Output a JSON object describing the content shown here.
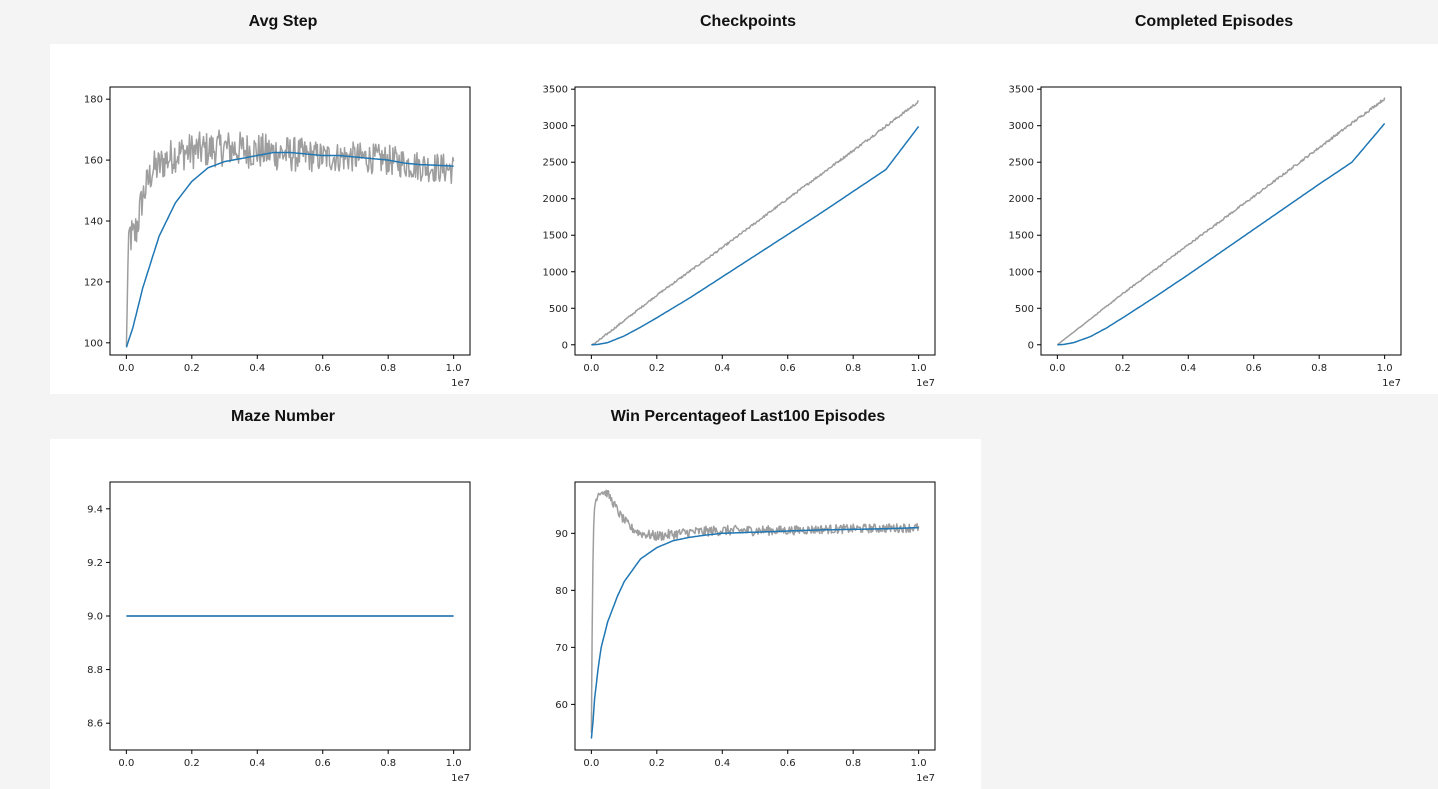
{
  "chart_data": [
    {
      "title": "Avg Step",
      "type": "line",
      "xlim": [
        -0.05,
        1.05
      ],
      "ylim": [
        96,
        184
      ],
      "xticks": [
        "0.0",
        "0.2",
        "0.4",
        "0.6",
        "0.8",
        "1.0"
      ],
      "yticks": [
        100,
        120,
        140,
        160,
        180
      ],
      "x_offset_label": "1e7",
      "series": [
        {
          "color": "#9e9e9e",
          "kind": "noisy",
          "x": [
            0,
            0.005,
            0.01,
            0.02,
            0.03,
            0.05,
            0.08,
            0.1,
            0.12,
            0.15,
            0.2,
            0.3,
            0.4,
            0.5,
            0.6,
            0.7,
            0.8,
            0.9,
            1.0
          ],
          "y": [
            99,
            125,
            136,
            134,
            137,
            148,
            157,
            158,
            160,
            162,
            163,
            164,
            163,
            162,
            161,
            161,
            160,
            158,
            157
          ],
          "noise": [
            0,
            6,
            7,
            7,
            7,
            6,
            6,
            6,
            6,
            6,
            6,
            6,
            6,
            6,
            5,
            5,
            5,
            5,
            5
          ]
        },
        {
          "color": "#1f77b4",
          "kind": "smooth",
          "x": [
            0,
            0.02,
            0.05,
            0.1,
            0.15,
            0.2,
            0.25,
            0.3,
            0.35,
            0.4,
            0.45,
            0.5,
            0.55,
            0.6,
            0.65,
            0.7,
            0.75,
            0.8,
            0.85,
            0.9,
            0.95,
            1.0
          ],
          "y": [
            98.5,
            105,
            118,
            135,
            146,
            153,
            157.5,
            159.5,
            160.5,
            161.5,
            162.5,
            162.5,
            162,
            161.5,
            161.5,
            161,
            160.5,
            160,
            159,
            158.5,
            158.3,
            158
          ]
        }
      ]
    },
    {
      "title": "Checkpoints",
      "type": "line",
      "xlim": [
        -0.05,
        1.05
      ],
      "ylim": [
        -140,
        3530
      ],
      "xticks": [
        "0.0",
        "0.2",
        "0.4",
        "0.6",
        "0.8",
        "1.0"
      ],
      "yticks": [
        0,
        500,
        1000,
        1500,
        2000,
        2500,
        3000,
        3500
      ],
      "x_offset_label": "1e7",
      "series": [
        {
          "color": "#9e9e9e",
          "kind": "noisy",
          "x": [
            0,
            0.01,
            0.02,
            0.2,
            0.4,
            0.6,
            0.8,
            1.0
          ],
          "y": [
            0,
            20,
            50,
            680,
            1330,
            2000,
            2660,
            3330
          ],
          "noise": [
            0,
            8,
            12,
            12,
            14,
            14,
            16,
            18
          ]
        },
        {
          "color": "#1f77b4",
          "kind": "smooth",
          "x": [
            0,
            0.02,
            0.05,
            0.1,
            0.15,
            0.2,
            0.3,
            0.4,
            0.5,
            0.6,
            0.7,
            0.8,
            0.9,
            1.0
          ],
          "y": [
            0,
            5,
            30,
            120,
            240,
            370,
            640,
            930,
            1220,
            1510,
            1800,
            2100,
            2400,
            2990
          ]
        }
      ]
    },
    {
      "title": "Completed Episodes",
      "type": "line",
      "xlim": [
        -0.05,
        1.05
      ],
      "ylim": [
        -140,
        3530
      ],
      "xticks": [
        "0.0",
        "0.2",
        "0.4",
        "0.6",
        "0.8",
        "1.0"
      ],
      "yticks": [
        0,
        500,
        1000,
        1500,
        2000,
        2500,
        3000,
        3500
      ],
      "x_offset_label": "1e7",
      "series": [
        {
          "color": "#9e9e9e",
          "kind": "noisy",
          "x": [
            0,
            0.2,
            0.4,
            0.6,
            0.8,
            1.0
          ],
          "y": [
            0,
            700,
            1370,
            2030,
            2700,
            3370
          ],
          "noise": [
            0,
            10,
            12,
            14,
            16,
            18
          ]
        },
        {
          "color": "#1f77b4",
          "kind": "smooth",
          "x": [
            0,
            0.02,
            0.05,
            0.1,
            0.15,
            0.2,
            0.3,
            0.4,
            0.5,
            0.6,
            0.7,
            0.8,
            0.9,
            1.0
          ],
          "y": [
            0,
            5,
            30,
            110,
            230,
            370,
            660,
            960,
            1270,
            1580,
            1890,
            2200,
            2500,
            3030
          ]
        }
      ]
    },
    {
      "title": "Maze Number",
      "type": "line",
      "xlim": [
        -0.05,
        1.05
      ],
      "ylim": [
        8.5,
        9.5
      ],
      "xticks": [
        "0.0",
        "0.2",
        "0.4",
        "0.6",
        "0.8",
        "1.0"
      ],
      "yticks": [
        "8.6",
        "8.8",
        "9.0",
        "9.2",
        "9.4"
      ],
      "x_offset_label": "1e7",
      "series": [
        {
          "color": "#9e9e9e",
          "kind": "smooth",
          "x": [
            0,
            1.0
          ],
          "y": [
            9.0,
            9.0
          ]
        },
        {
          "color": "#1f77b4",
          "kind": "smooth",
          "x": [
            0,
            1.0
          ],
          "y": [
            9.0,
            9.0
          ]
        }
      ]
    },
    {
      "title": "Win Percentageof Last100 Episodes",
      "type": "line",
      "xlim": [
        -0.05,
        1.05
      ],
      "ylim": [
        52,
        99
      ],
      "xticks": [
        "0.0",
        "0.2",
        "0.4",
        "0.6",
        "0.8",
        "1.0"
      ],
      "yticks": [
        60,
        70,
        80,
        90
      ],
      "x_offset_label": "1e7",
      "series": [
        {
          "color": "#9e9e9e",
          "kind": "noisy",
          "x": [
            0,
            0.003,
            0.006,
            0.01,
            0.02,
            0.03,
            0.05,
            0.07,
            0.09,
            0.12,
            0.15,
            0.2,
            0.3,
            0.4,
            0.5,
            0.6,
            0.7,
            0.8,
            0.9,
            1.0
          ],
          "y": [
            55,
            76,
            90,
            95,
            97,
            97.3,
            97,
            95,
            93,
            91,
            90,
            89.5,
            90.2,
            90.5,
            90.5,
            90.5,
            90.7,
            90.8,
            90.9,
            91
          ],
          "noise": [
            0,
            0.5,
            0.6,
            0.6,
            0.6,
            0.6,
            0.7,
            0.8,
            0.8,
            0.8,
            0.8,
            0.9,
            0.9,
            0.9,
            0.9,
            0.8,
            0.8,
            0.8,
            0.8,
            0.8
          ]
        },
        {
          "color": "#1f77b4",
          "kind": "smooth",
          "x": [
            0,
            0.005,
            0.01,
            0.02,
            0.03,
            0.05,
            0.08,
            0.1,
            0.15,
            0.2,
            0.25,
            0.3,
            0.35,
            0.4,
            0.5,
            0.6,
            0.7,
            0.8,
            0.9,
            1.0
          ],
          "y": [
            54,
            57,
            61,
            66,
            70,
            74.5,
            79,
            81.5,
            85.5,
            87.5,
            88.7,
            89.3,
            89.7,
            90,
            90.2,
            90.4,
            90.6,
            90.7,
            90.8,
            91
          ]
        }
      ]
    }
  ]
}
